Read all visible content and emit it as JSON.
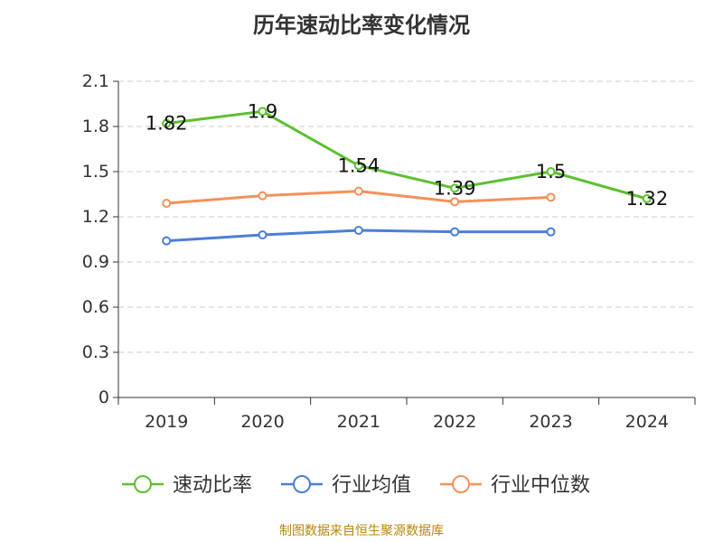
{
  "page": {
    "title": "历年速动比率变化情况",
    "source": "制图数据来自恒生聚源数据库"
  },
  "colors": {
    "series_1": "#5cc02f",
    "series_2": "#4a7fd6",
    "series_3": "#f5915a",
    "grid": "#cccccc",
    "axis": "#333333",
    "source": "#b8860b"
  },
  "chart_data": {
    "type": "line",
    "title": "历年速动比率变化情况",
    "xlabel": "",
    "ylabel": "",
    "categories": [
      "2019",
      "2020",
      "2021",
      "2022",
      "2023",
      "2024"
    ],
    "ylim": [
      0,
      2.1
    ],
    "yticks": [
      "0",
      "0.3",
      "0.6",
      "0.9",
      "1.2",
      "1.5",
      "1.8",
      "2.1"
    ],
    "grid": true,
    "legend_position": "bottom",
    "series": [
      {
        "name": "速动比率",
        "values": [
          1.82,
          1.9,
          1.54,
          1.39,
          1.5,
          1.32
        ],
        "labels": [
          "1.82",
          "1.9",
          "1.54",
          "1.39",
          "1.5",
          "1.32"
        ],
        "show_labels": true
      },
      {
        "name": "行业均值",
        "values": [
          1.04,
          1.08,
          1.11,
          1.1,
          1.1,
          null
        ],
        "show_labels": false
      },
      {
        "name": "行业中位数",
        "values": [
          1.29,
          1.34,
          1.37,
          1.3,
          1.33,
          null
        ],
        "show_labels": false
      }
    ]
  }
}
